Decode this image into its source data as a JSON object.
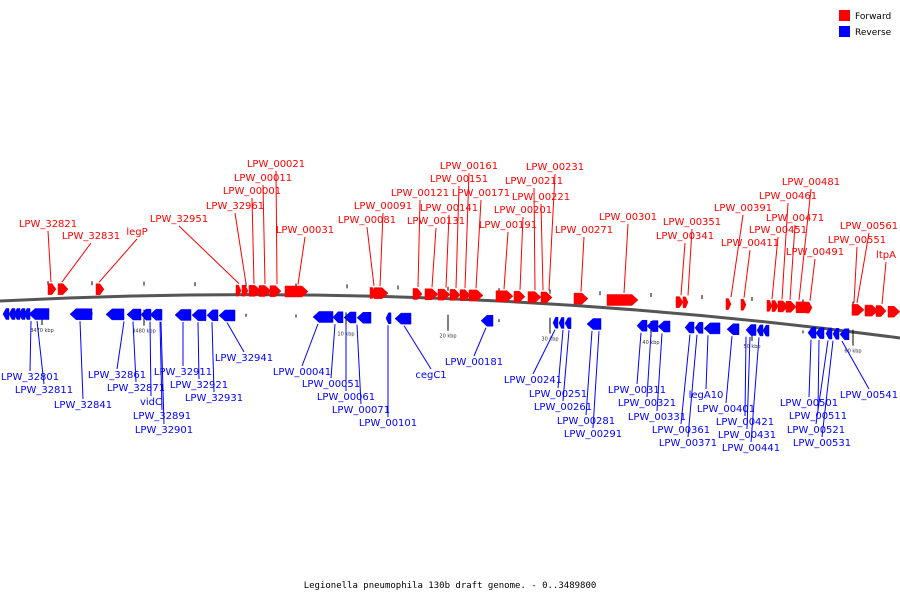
{
  "colors": {
    "forward": "#ff0000",
    "reverse": "#0000ff",
    "backbone": "#555555",
    "tick": "#000000"
  },
  "legend": [
    {
      "label": "Forward",
      "color": "#ff0000"
    },
    {
      "label": "Reverse",
      "color": "#0000ff"
    }
  ],
  "caption": "Legionella pneumophila 130b draft genome. - 0..3489800",
  "scale_labels": [
    "3470 kbp",
    "3480 kbp",
    "10 kbp",
    "20 kbp",
    "30 kbp",
    "40 kbp",
    "50 kbp",
    "60 kbp"
  ],
  "forward_labels": [
    "LPW_32821",
    "LPW_32831",
    "legP",
    "LPW_32951",
    "LPW_32961",
    "LPW_00001",
    "LPW_00011",
    "LPW_00021",
    "LPW_00031",
    "LPW_00081",
    "LPW_00091",
    "LPW_00121",
    "LPW_00131",
    "LPW_00141",
    "LPW_00151",
    "LPW_00161",
    "LPW_00171",
    "LPW_00191",
    "LPW_00201",
    "LPW_00211",
    "LPW_00221",
    "LPW_00231",
    "LPW_00271",
    "LPW_00301",
    "LPW_00341",
    "LPW_00351",
    "LPW_00391",
    "LPW_00411",
    "LPW_00451",
    "LPW_00461",
    "LPW_00471",
    "LPW_00481",
    "LPW_00491",
    "LPW_00551",
    "LPW_00561",
    "ltpA"
  ],
  "reverse_labels": [
    "LPW_32801",
    "LPW_32811",
    "LPW_32841",
    "LPW_32861",
    "LPW_32871",
    "vidC",
    "LPW_32891",
    "LPW_32901",
    "LPW_32911",
    "LPW_32921",
    "LPW_32931",
    "LPW_32941",
    "LPW_00041",
    "LPW_00051",
    "LPW_00061",
    "LPW_00071",
    "LPW_00101",
    "cegC1",
    "LPW_00181",
    "LPW_00241",
    "LPW_00251",
    "LPW_00261",
    "LPW_00281",
    "LPW_00291",
    "LPW_00311",
    "LPW_00321",
    "LPW_00331",
    "LPW_00361",
    "LPW_00371",
    "legA10",
    "LPW_00401",
    "LPW_00421",
    "LPW_00431",
    "LPW_00441",
    "LPW_00501",
    "LPW_00511",
    "LPW_00521",
    "LPW_00531",
    "LPW_00541"
  ]
}
